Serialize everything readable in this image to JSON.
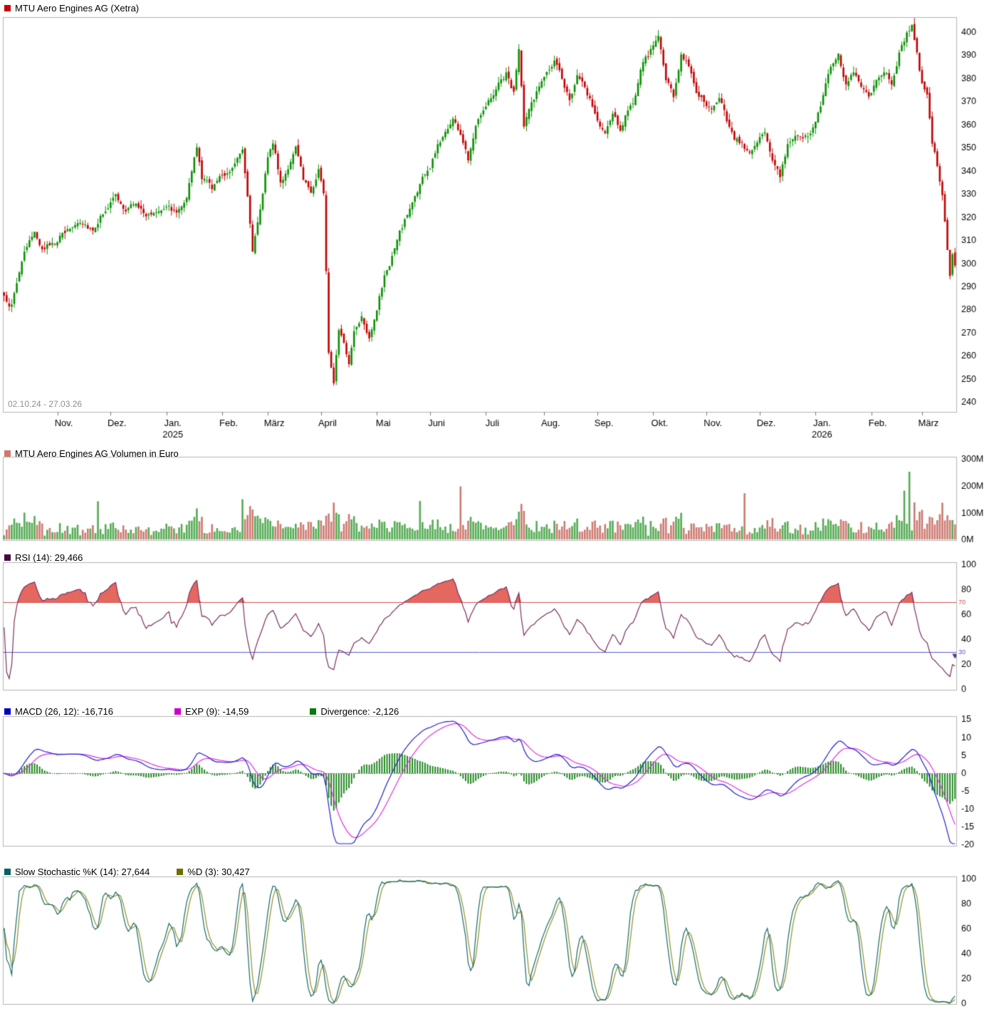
{
  "chart_data": [
    {
      "type": "candlestick",
      "title": "MTU Aero Engines AG (Xetra)",
      "instrument": "MTU Aero Engines AG",
      "exchange": "Xetra",
      "date_range": "02.10.24 - 27.03.26",
      "days": 376,
      "xlabel": "",
      "ylabel": "",
      "ylim": [
        236,
        406.5
      ],
      "grid": false,
      "legend_position": "top-left",
      "y_ticks": [
        240,
        250,
        260,
        270,
        280,
        290,
        300,
        310,
        320,
        330,
        340,
        350,
        360,
        370,
        380,
        390,
        400
      ],
      "x_labels": [
        {
          "label": "Nov.",
          "day": 21
        },
        {
          "label": "Dez.",
          "day": 42
        },
        {
          "label": "Jan.",
          "day": 64,
          "year": "2025"
        },
        {
          "label": "Feb.",
          "day": 86
        },
        {
          "label": "März",
          "day": 104
        },
        {
          "label": "April",
          "day": 125
        },
        {
          "label": "Mai",
          "day": 147
        },
        {
          "label": "Juni",
          "day": 168
        },
        {
          "label": "Juli",
          "day": 190
        },
        {
          "label": "Aug.",
          "day": 213
        },
        {
          "label": "Sep.",
          "day": 234
        },
        {
          "label": "Okt.",
          "day": 256
        },
        {
          "label": "Nov.",
          "day": 277
        },
        {
          "label": "Dez.",
          "day": 298
        },
        {
          "label": "Jan.",
          "day": 320,
          "year": "2026"
        },
        {
          "label": "Feb.",
          "day": 342
        },
        {
          "label": "März",
          "day": 362
        }
      ],
      "close_anchors": [
        [
          0,
          285
        ],
        [
          3,
          282
        ],
        [
          8,
          306
        ],
        [
          12,
          312
        ],
        [
          16,
          306
        ],
        [
          20,
          310
        ],
        [
          25,
          314
        ],
        [
          30,
          319
        ],
        [
          35,
          315
        ],
        [
          40,
          324
        ],
        [
          44,
          329
        ],
        [
          48,
          322
        ],
        [
          52,
          327
        ],
        [
          56,
          320
        ],
        [
          60,
          323
        ],
        [
          64,
          326
        ],
        [
          68,
          322
        ],
        [
          72,
          330
        ],
        [
          76,
          350
        ],
        [
          78,
          337
        ],
        [
          82,
          333
        ],
        [
          86,
          338
        ],
        [
          90,
          342
        ],
        [
          94,
          351
        ],
        [
          96,
          330
        ],
        [
          98,
          307
        ],
        [
          101,
          322
        ],
        [
          104,
          347
        ],
        [
          106,
          353
        ],
        [
          109,
          335
        ],
        [
          112,
          342
        ],
        [
          115,
          349
        ],
        [
          118,
          337
        ],
        [
          121,
          331
        ],
        [
          124,
          341
        ],
        [
          126,
          331
        ],
        [
          128,
          262
        ],
        [
          130,
          250
        ],
        [
          132,
          273
        ],
        [
          134,
          265
        ],
        [
          136,
          257
        ],
        [
          138,
          271
        ],
        [
          141,
          278
        ],
        [
          144,
          269
        ],
        [
          147,
          281
        ],
        [
          150,
          294
        ],
        [
          153,
          303
        ],
        [
          156,
          313
        ],
        [
          159,
          321
        ],
        [
          162,
          329
        ],
        [
          165,
          337
        ],
        [
          168,
          341
        ],
        [
          171,
          351
        ],
        [
          174,
          357
        ],
        [
          177,
          363
        ],
        [
          180,
          356
        ],
        [
          183,
          345
        ],
        [
          186,
          361
        ],
        [
          189,
          368
        ],
        [
          192,
          372
        ],
        [
          195,
          378
        ],
        [
          198,
          382
        ],
        [
          201,
          374
        ],
        [
          203,
          392
        ],
        [
          205,
          359
        ],
        [
          208,
          369
        ],
        [
          211,
          377
        ],
        [
          214,
          382
        ],
        [
          217,
          387
        ],
        [
          220,
          379
        ],
        [
          223,
          372
        ],
        [
          226,
          381
        ],
        [
          229,
          375
        ],
        [
          232,
          368
        ],
        [
          234,
          361
        ],
        [
          237,
          356
        ],
        [
          240,
          364
        ],
        [
          243,
          358
        ],
        [
          246,
          367
        ],
        [
          249,
          372
        ],
        [
          252,
          387
        ],
        [
          255,
          392
        ],
        [
          258,
          397
        ],
        [
          261,
          380
        ],
        [
          264,
          372
        ],
        [
          267,
          391
        ],
        [
          270,
          386
        ],
        [
          273,
          375
        ],
        [
          276,
          370
        ],
        [
          279,
          365
        ],
        [
          282,
          371
        ],
        [
          285,
          362
        ],
        [
          288,
          355
        ],
        [
          291,
          352
        ],
        [
          294,
          348
        ],
        [
          297,
          352
        ],
        [
          300,
          357
        ],
        [
          303,
          345
        ],
        [
          306,
          338
        ],
        [
          309,
          351
        ],
        [
          312,
          357
        ],
        [
          315,
          353
        ],
        [
          318,
          356
        ],
        [
          320,
          361
        ],
        [
          323,
          372
        ],
        [
          326,
          385
        ],
        [
          329,
          391
        ],
        [
          332,
          378
        ],
        [
          335,
          383
        ],
        [
          338,
          375
        ],
        [
          341,
          372
        ],
        [
          344,
          379
        ],
        [
          347,
          384
        ],
        [
          350,
          378
        ],
        [
          353,
          391
        ],
        [
          356,
          399
        ],
        [
          358,
          403
        ],
        [
          360,
          392
        ],
        [
          362,
          378
        ],
        [
          364,
          372
        ],
        [
          366,
          352
        ],
        [
          368,
          342
        ],
        [
          370,
          330
        ],
        [
          372,
          307
        ],
        [
          373,
          294
        ],
        [
          374,
          305
        ],
        [
          375,
          300
        ]
      ],
      "colors": {
        "up": "#089000",
        "down": "#c00000",
        "legend_square": "#cc0000",
        "border": "#b3b3b3",
        "axis_text": "#000000",
        "range_text": "#8f8f8f"
      }
    },
    {
      "type": "bar",
      "title": "MTU Aero Engines AG Volumen in Euro",
      "unit": "EUR",
      "ylim": [
        0,
        310
      ],
      "y_ticks": [
        {
          "v": 0,
          "label": "0M"
        },
        {
          "v": 100,
          "label": "100M"
        },
        {
          "v": 200,
          "label": "200M"
        },
        {
          "v": 300,
          "label": "300M"
        }
      ],
      "base_range_millions": [
        14,
        52
      ],
      "spikes_millions": [
        [
          8,
          100
        ],
        [
          12,
          95
        ],
        [
          37,
          140
        ],
        [
          76,
          110
        ],
        [
          94,
          150
        ],
        [
          97,
          125
        ],
        [
          98,
          110
        ],
        [
          128,
          105
        ],
        [
          130,
          135
        ],
        [
          131,
          100
        ],
        [
          136,
          95
        ],
        [
          164,
          150
        ],
        [
          180,
          190
        ],
        [
          203,
          110
        ],
        [
          204,
          130
        ],
        [
          252,
          90
        ],
        [
          292,
          160
        ],
        [
          303,
          85
        ],
        [
          352,
          95
        ],
        [
          355,
          190
        ],
        [
          357,
          270
        ],
        [
          359,
          130
        ],
        [
          362,
          120
        ],
        [
          366,
          90
        ],
        [
          370,
          135
        ],
        [
          372,
          100
        ]
      ],
      "colors": {
        "up": "#54ab54",
        "down": "#cc7a70",
        "legend_square": "#cc7a70"
      }
    },
    {
      "type": "line",
      "title": "RSI (14)",
      "period": 14,
      "value": 29.466,
      "value_text": "29,466",
      "legend_text": "RSI (14): 29,466",
      "ylim": [
        0,
        102.3
      ],
      "y_ticks": [
        0,
        20,
        40,
        60,
        80,
        100
      ],
      "overbought": 70,
      "oversold": 30,
      "derived_from": "price_closes",
      "colors": {
        "line": "#7a2f5f",
        "legend_square": "#45083f",
        "overbought_line": "#d05050",
        "oversold_line": "#5858d0",
        "overbought_fill": "#e4685f",
        "signal_marker": "#4d3b9e"
      }
    },
    {
      "type": "macd",
      "title": "MACD (26, 12)",
      "fast": 12,
      "slow": 26,
      "signal_period": 9,
      "value": -16.716,
      "value_text": "-16,716",
      "signal_label": "EXP (9)",
      "signal_value": -14.59,
      "signal_value_text": "-14,59",
      "divergence_label": "Divergence",
      "divergence_value": -2.126,
      "divergence_value_text": "-2,126",
      "legend_items": [
        {
          "text": "MACD (26, 12): -16,716",
          "color": "#0000bb"
        },
        {
          "text": "EXP (9): -14,59",
          "color": "#cc00cc"
        },
        {
          "text": "Divergence: -2,126",
          "color": "#0a7a0a"
        }
      ],
      "ylim": [
        -20.2,
        16
      ],
      "y_ticks": [
        15,
        10,
        5,
        0,
        -5,
        -10,
        -15,
        -20
      ],
      "colors": {
        "macd_line": "#2020cc",
        "signal_line": "#e030e0",
        "histogram": "#0f7d0f",
        "zero_line": "#333333"
      }
    },
    {
      "type": "stochastic",
      "title": "Slow Stochastic %K (14)",
      "k_period": 14,
      "d_period": 3,
      "k_value": 27.644,
      "k_value_text": "27,644",
      "d_label": "%D (3)",
      "d_value": 30.427,
      "d_value_text": "30,427",
      "legend_items": [
        {
          "text": "Slow Stochastic %K (14): 27,644",
          "color": "#0b6060"
        },
        {
          "text": "%D (3): 30,427",
          "color": "#6e6e00"
        }
      ],
      "ylim": [
        0,
        102.3
      ],
      "y_ticks": [
        0,
        20,
        40,
        60,
        80,
        100
      ],
      "colors": {
        "k_line": "#17696b",
        "d_line": "#8f8f2a"
      }
    }
  ]
}
